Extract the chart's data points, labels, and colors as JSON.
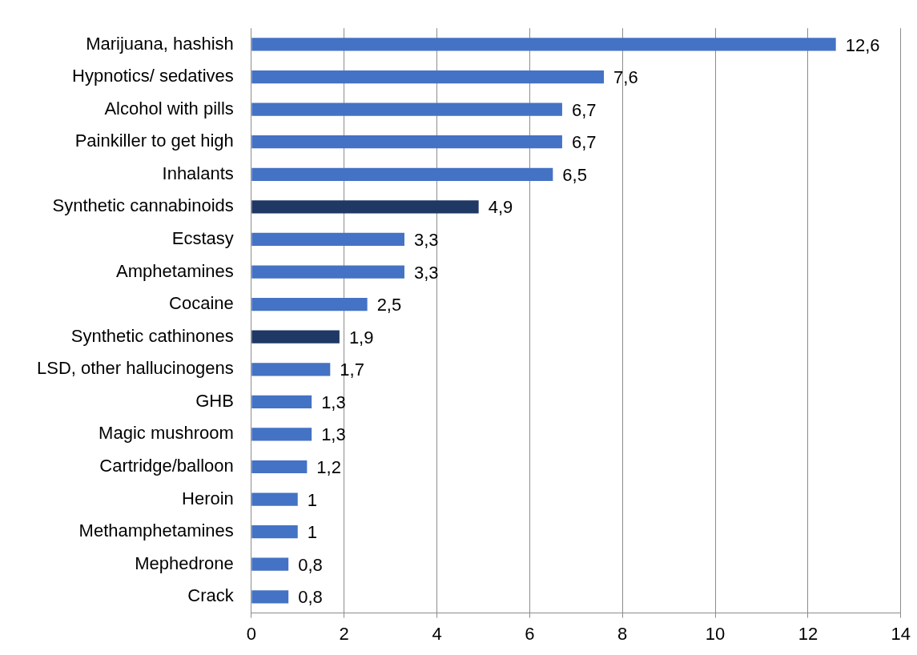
{
  "chart_data": {
    "type": "bar",
    "orientation": "horizontal",
    "categories": [
      "Marijuana, hashish",
      "Hypnotics/ sedatives",
      "Alcohol with pills",
      "Painkiller to get high",
      "Inhalants",
      "Synthetic cannabinoids",
      "Ecstasy",
      "Amphetamines",
      "Cocaine",
      "Synthetic cathinones",
      "LSD, other hallucinogens",
      "GHB",
      "Magic mushroom",
      "Cartridge/balloon",
      "Heroin",
      "Methamphetamines",
      "Mephedrone",
      "Crack"
    ],
    "values": [
      12.6,
      7.6,
      6.7,
      6.7,
      6.5,
      4.9,
      3.3,
      3.3,
      2.5,
      1.9,
      1.7,
      1.3,
      1.3,
      1.2,
      1,
      1,
      0.8,
      0.8
    ],
    "colors": [
      "#4472c4",
      "#4472c4",
      "#4472c4",
      "#4472c4",
      "#4472c4",
      "#1f3864",
      "#4472c4",
      "#4472c4",
      "#4472c4",
      "#1f3864",
      "#4472c4",
      "#4472c4",
      "#4472c4",
      "#4472c4",
      "#4472c4",
      "#4472c4",
      "#4472c4",
      "#4472c4"
    ],
    "value_labels": [
      "12,6",
      "7,6",
      "6,7",
      "6,7",
      "6,5",
      "4,9",
      "3,3",
      "3,3",
      "2,5",
      "1,9",
      "1,7",
      "1,3",
      "1,3",
      "1,2",
      "1",
      "1",
      "0,8",
      "0,8"
    ],
    "xlim": [
      0,
      14
    ],
    "xticks": [
      0,
      2,
      4,
      6,
      8,
      10,
      12,
      14
    ],
    "grid": "x"
  }
}
